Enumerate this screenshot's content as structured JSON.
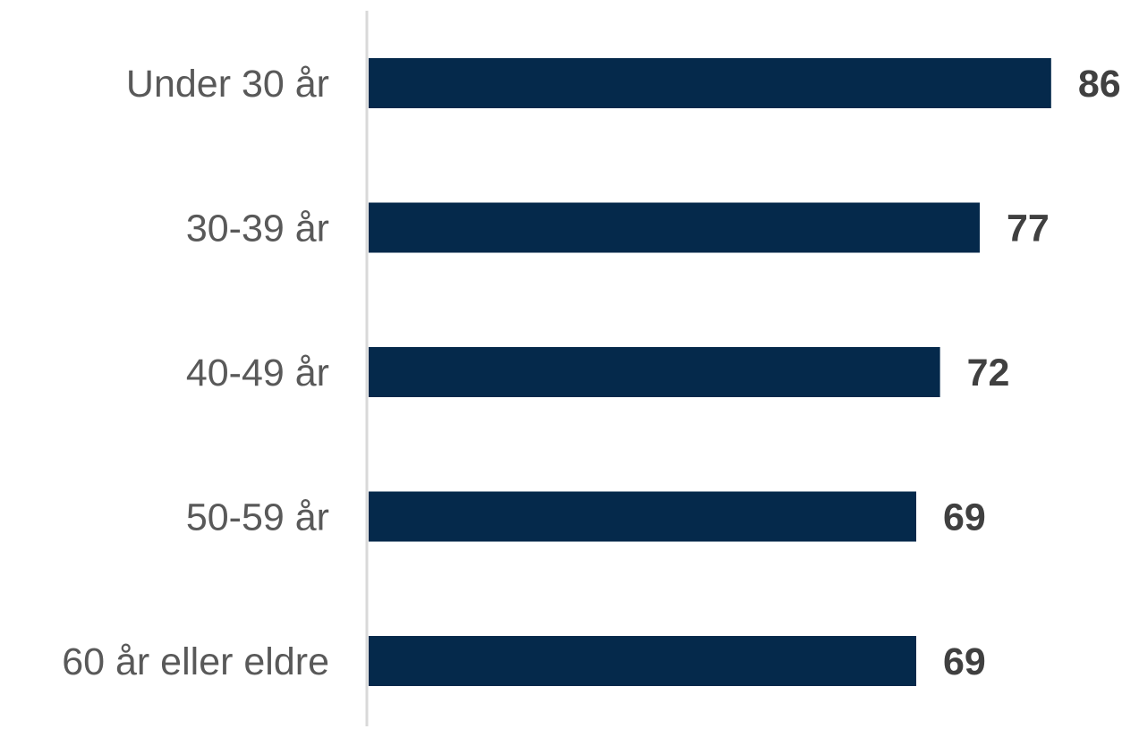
{
  "chart_data": {
    "type": "bar",
    "orientation": "horizontal",
    "categories": [
      "Under 30 år",
      "30-39 år",
      "40-49 år",
      "50-59 år",
      "60 år eller eldre"
    ],
    "values": [
      86,
      77,
      72,
      69,
      69
    ],
    "data_labels": [
      "86",
      "77",
      "72",
      "69",
      "69"
    ],
    "title": "",
    "xlabel": "",
    "ylabel": "",
    "xlim": [
      0,
      100
    ],
    "grid": false,
    "legend": "none",
    "bar_color": "#05294b",
    "axis_color": "#d9d9d9"
  }
}
